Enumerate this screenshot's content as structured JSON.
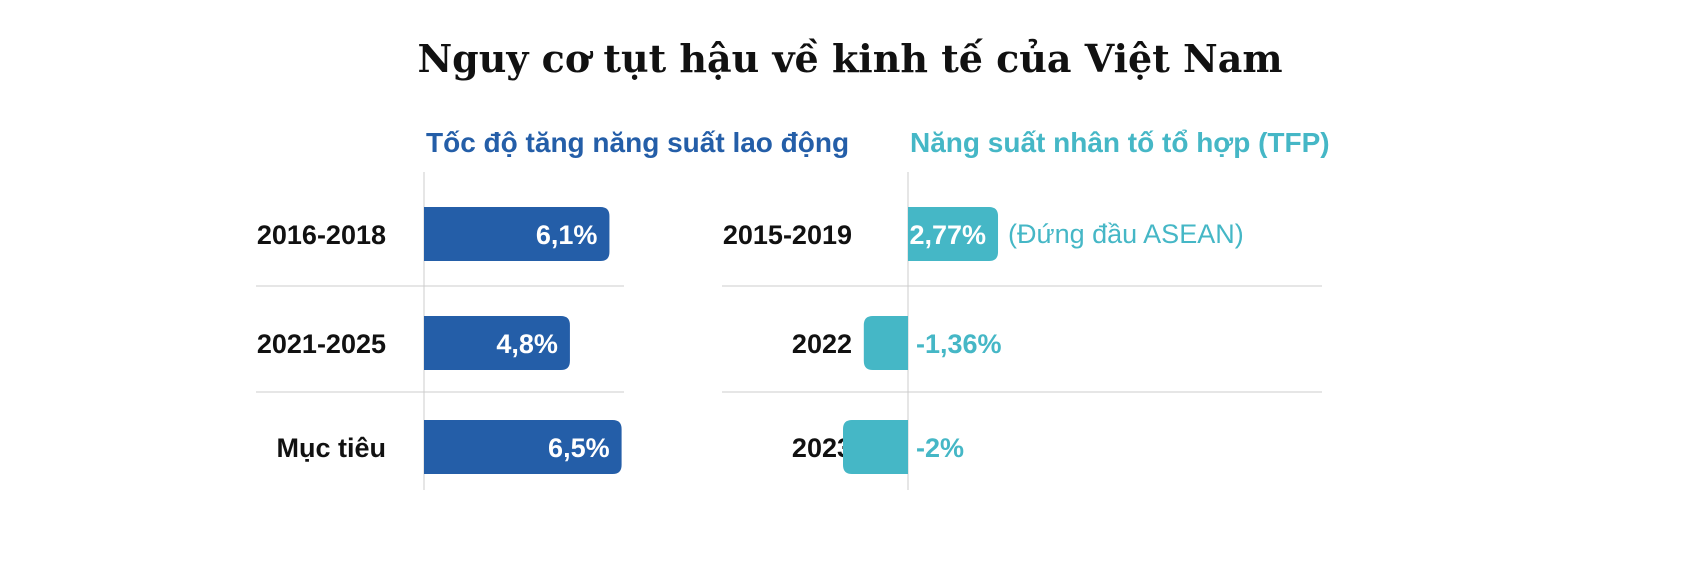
{
  "title": "Nguy cơ tụt hậu về kinh tế của Việt Nam",
  "colors": {
    "left": "#245ea8",
    "right": "#45b7c6",
    "grid": "#cccccc",
    "text": "#111111"
  },
  "chart_data": [
    {
      "type": "bar",
      "orientation": "horizontal",
      "title": "Tốc độ tăng năng suất lao động",
      "categories": [
        "2016-2018",
        "2021-2025",
        "Mục tiêu"
      ],
      "values": [
        6.1,
        4.8,
        6.5
      ],
      "value_labels": [
        "6,1%",
        "4,8%",
        "6,5%"
      ],
      "unit": "%",
      "notes": [
        "",
        "",
        ""
      ]
    },
    {
      "type": "bar",
      "orientation": "horizontal",
      "title": "Năng suất nhân tố tổ hợp (TFP)",
      "categories": [
        "2015-2019",
        "2022",
        "2023"
      ],
      "values": [
        2.77,
        -1.36,
        -2
      ],
      "value_labels": [
        "2,77%",
        "-1,36%",
        "-2%"
      ],
      "unit": "%",
      "notes": [
        "(Đứng đầu ASEAN)",
        "",
        ""
      ]
    }
  ]
}
